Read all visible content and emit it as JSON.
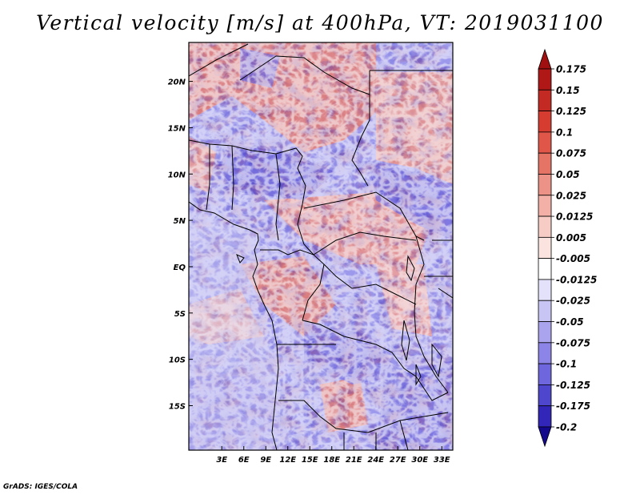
{
  "title": "Vertical velocity [m/s] at 400hPa, VT: 2019031100",
  "footer": "GrADS: IGES/COLA",
  "map": {
    "variable": "Vertical velocity",
    "units": "m/s",
    "level": "400hPa",
    "valid_time": "2019031100",
    "lon_range": [
      -1.5,
      34.5
    ],
    "lat_range": [
      -19.8,
      24.2
    ],
    "lon_ticks": [
      {
        "value": 3,
        "label": "3E"
      },
      {
        "value": 6,
        "label": "6E"
      },
      {
        "value": 9,
        "label": "9E"
      },
      {
        "value": 12,
        "label": "12E"
      },
      {
        "value": 15,
        "label": "15E"
      },
      {
        "value": 18,
        "label": "18E"
      },
      {
        "value": 21,
        "label": "21E"
      },
      {
        "value": 24,
        "label": "24E"
      },
      {
        "value": 27,
        "label": "27E"
      },
      {
        "value": 30,
        "label": "30E"
      },
      {
        "value": 33,
        "label": "33E"
      }
    ],
    "lat_ticks": [
      {
        "value": 20,
        "label": "20N"
      },
      {
        "value": 15,
        "label": "15N"
      },
      {
        "value": 10,
        "label": "10N"
      },
      {
        "value": 5,
        "label": "5N"
      },
      {
        "value": 0,
        "label": "EQ"
      },
      {
        "value": -5,
        "label": "5S"
      },
      {
        "value": -10,
        "label": "10S"
      },
      {
        "value": -15,
        "label": "15S"
      }
    ]
  },
  "colorbar": {
    "levels": [
      {
        "label": "0.175",
        "color": "#b01818"
      },
      {
        "label": "0.15",
        "color": "#c42a24"
      },
      {
        "label": "0.125",
        "color": "#d63c30"
      },
      {
        "label": "0.1",
        "color": "#e0574a"
      },
      {
        "label": "0.075",
        "color": "#e57466"
      },
      {
        "label": "0.05",
        "color": "#ec9286"
      },
      {
        "label": "0.025",
        "color": "#f2b0a6"
      },
      {
        "label": "0.0125",
        "color": "#f7ccc4"
      },
      {
        "label": "0.005",
        "color": "#fbe4e0"
      },
      {
        "label": "-0.005",
        "color": "#ffffff"
      },
      {
        "label": "-0.0125",
        "color": "#e4e2fa"
      },
      {
        "label": "-0.025",
        "color": "#c8c4f4"
      },
      {
        "label": "-0.05",
        "color": "#aaa4ee"
      },
      {
        "label": "-0.075",
        "color": "#8c84e6"
      },
      {
        "label": "-0.1",
        "color": "#6e66dc"
      },
      {
        "label": "-0.125",
        "color": "#4e46cc"
      },
      {
        "label": "-0.175",
        "color": "#3226b8"
      },
      {
        "label": "-0.2",
        "color": "#1c10a0"
      }
    ],
    "top_overflow_color": "#a01010",
    "bottom_overflow_color": "#14088c"
  }
}
